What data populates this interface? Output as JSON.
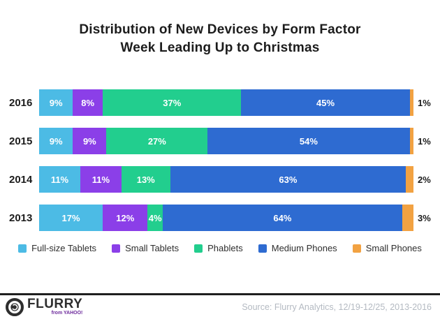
{
  "title": {
    "line1": "Distribution of New Devices by Form Factor",
    "line2": "Week Leading Up to Christmas"
  },
  "chart_data": {
    "type": "bar",
    "variant": "horizontal-stacked",
    "unit": "%",
    "xlim": [
      0,
      100
    ],
    "grid": false,
    "legend_position": "bottom",
    "value_label_format": "{value}%",
    "categories": [
      "2016",
      "2015",
      "2014",
      "2013"
    ],
    "series": [
      {
        "name": "Full-size Tablets",
        "color": "#4CBBE5",
        "values": [
          9,
          9,
          11,
          17
        ],
        "label_position": "inside"
      },
      {
        "name": "Small Tablets",
        "color": "#8B3FE8",
        "values": [
          8,
          9,
          11,
          12
        ],
        "label_position": "inside"
      },
      {
        "name": "Phablets",
        "color": "#22CE8E",
        "values": [
          37,
          27,
          13,
          4
        ],
        "label_position": "inside"
      },
      {
        "name": "Medium Phones",
        "color": "#2E6BD1",
        "values": [
          45,
          54,
          63,
          64
        ],
        "label_position": "inside"
      },
      {
        "name": "Small Phones",
        "color": "#F2A242",
        "values": [
          1,
          1,
          2,
          3
        ],
        "label_position": "outside"
      }
    ]
  },
  "footer": {
    "brand": "FLURRY",
    "sub_brand": "from YAHOO!",
    "sub_brand_color": "#6D2A9C",
    "source": "Source: Flurry Analytics, 12/19-12/25, 2013-2016"
  }
}
